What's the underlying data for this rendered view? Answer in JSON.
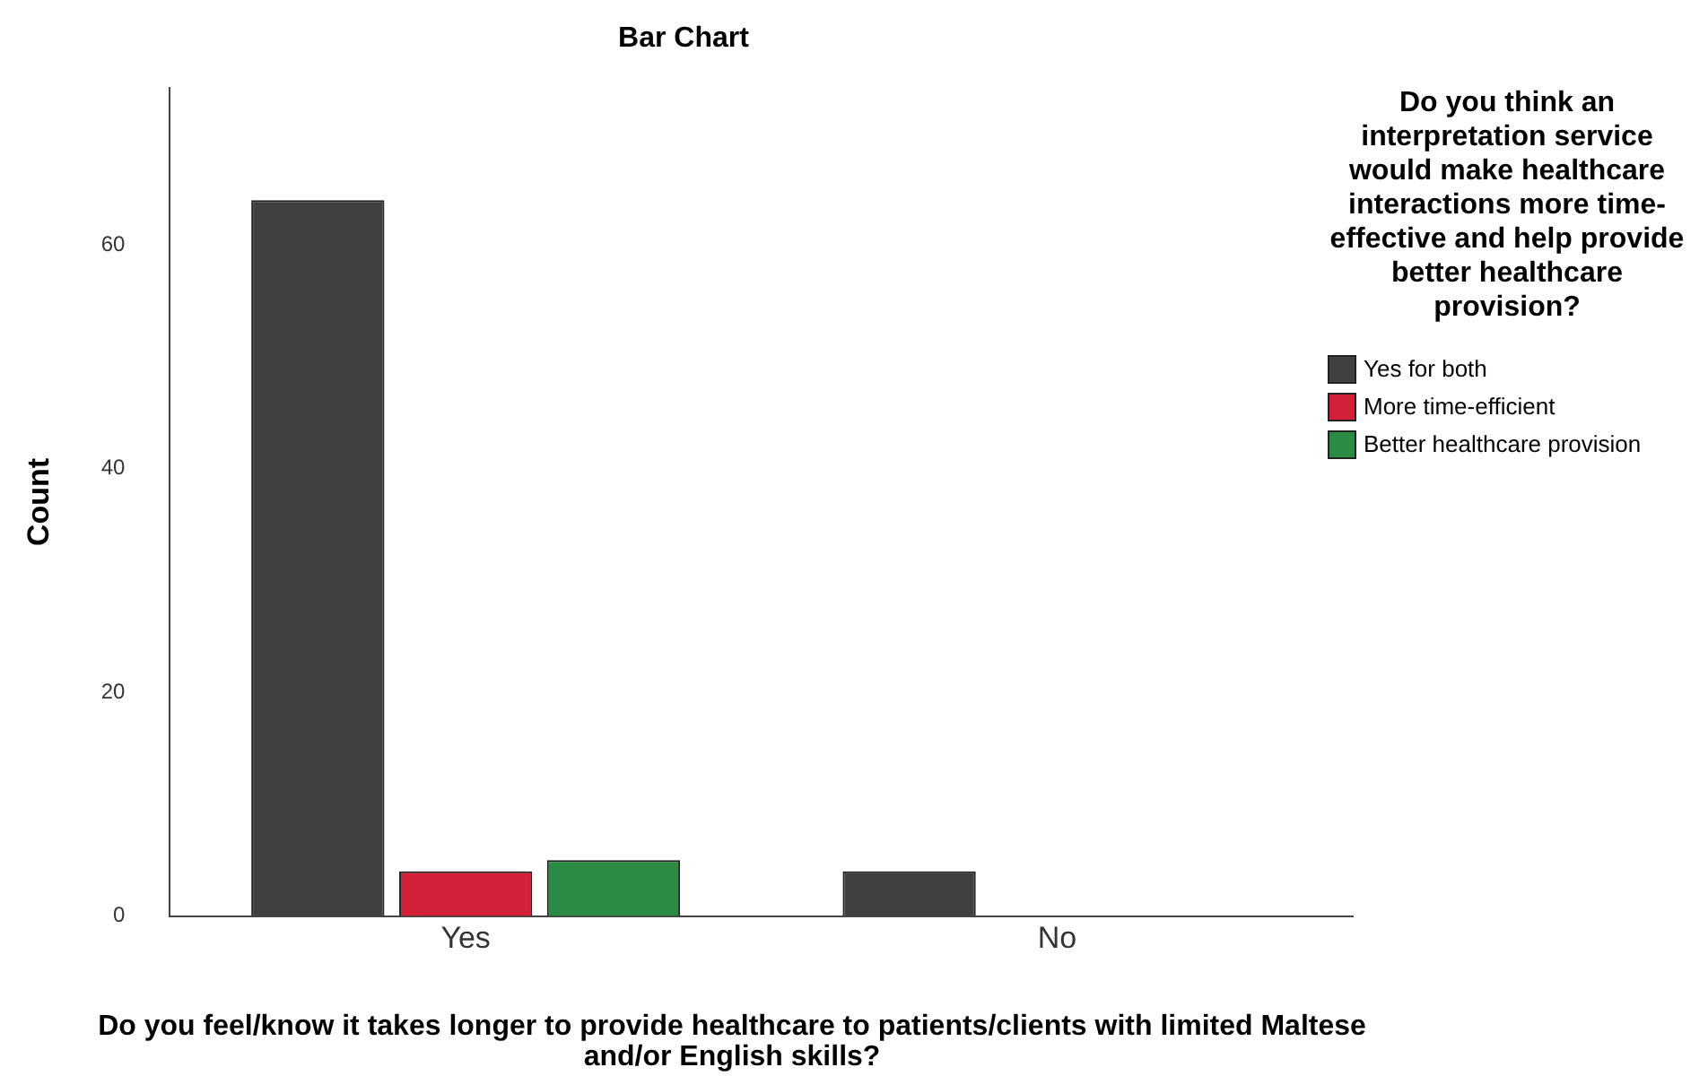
{
  "chart_data": {
    "type": "bar",
    "title": "Bar Chart",
    "xlabel": "Do you feel/know it takes longer to provide healthcare to patients/clients with limited Maltese and/or English skills?",
    "ylabel": "Count",
    "legend_title": "Do you think an interpretation service would make healthcare interactions more time-effective and help provide better healthcare provision?",
    "categories": [
      "Yes",
      "No"
    ],
    "series": [
      {
        "name": "Yes for both",
        "color": "#404040",
        "values": [
          64,
          4
        ]
      },
      {
        "name": "More time-efficient",
        "color": "#d42038",
        "values": [
          4,
          null
        ]
      },
      {
        "name": "Better healthcare provision",
        "color": "#2b8a44",
        "values": [
          5,
          null
        ]
      }
    ],
    "ylim": [
      0,
      74
    ],
    "yticks": [
      0,
      20,
      40,
      60
    ],
    "grid": false,
    "legend": "right"
  }
}
